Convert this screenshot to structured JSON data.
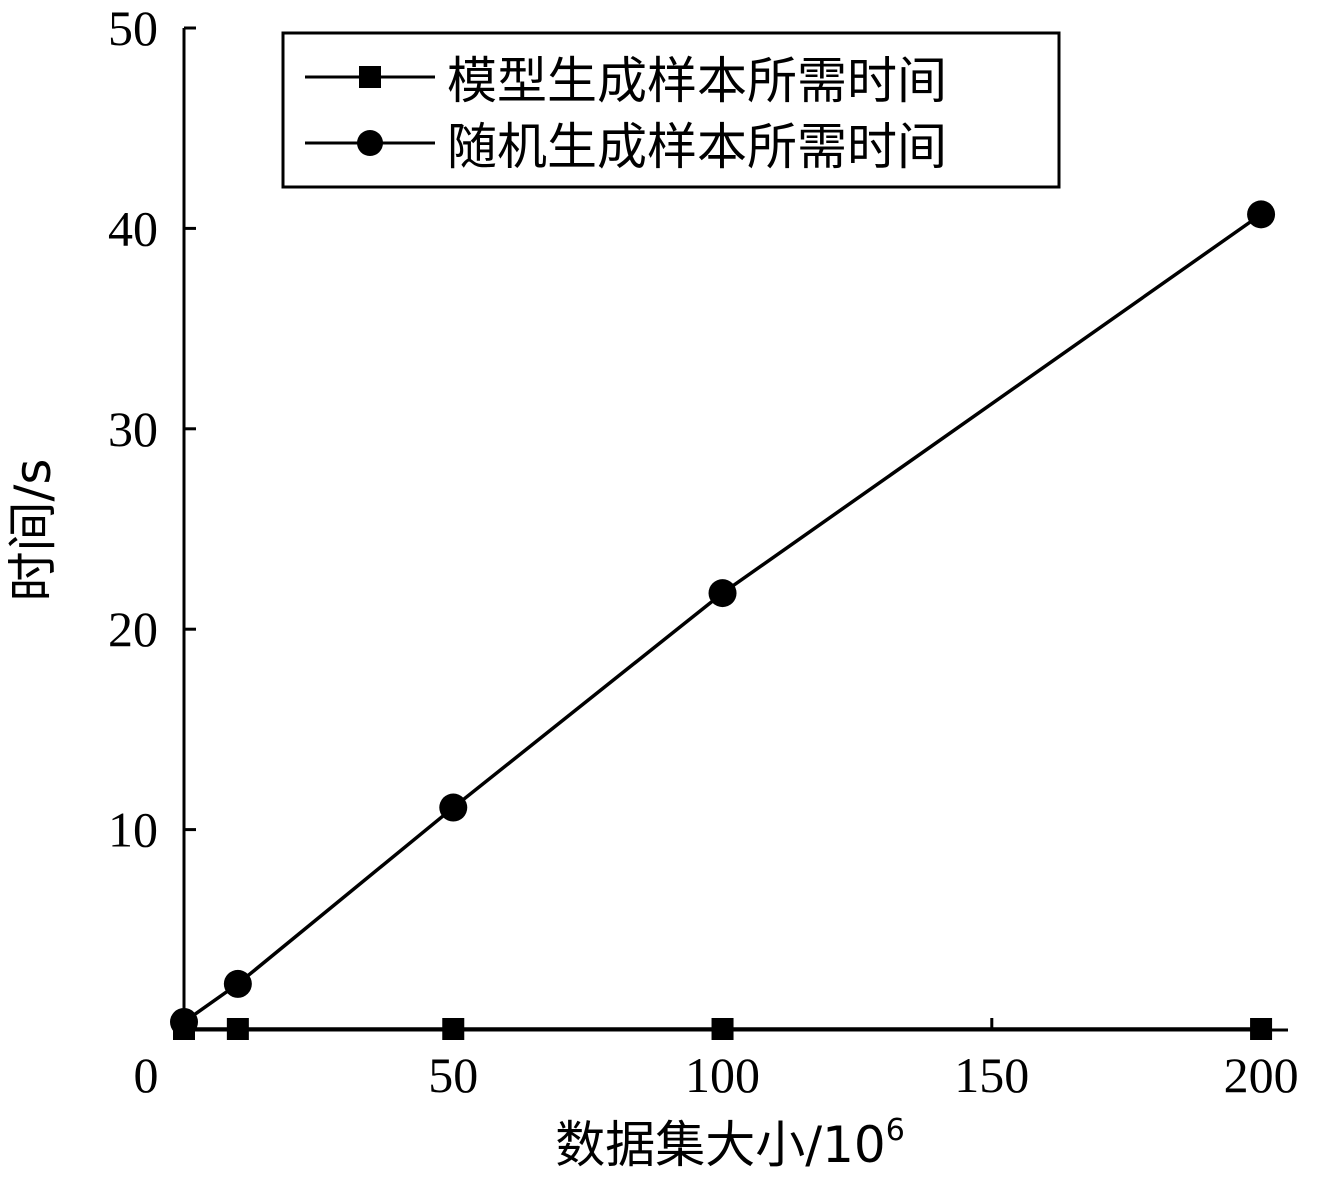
{
  "chart_data": {
    "type": "line",
    "title": "",
    "xlabel": "数据集大小/10",
    "xlabel_superscript": "6",
    "ylabel": "时间/s",
    "xlim": [
      0,
      205
    ],
    "ylim": [
      0,
      50
    ],
    "x_ticks": [
      0,
      50,
      100,
      150,
      200
    ],
    "x_tick_labels": [
      "0",
      "50",
      "100",
      "150",
      "200"
    ],
    "y_ticks": [
      10,
      20,
      30,
      40,
      50
    ],
    "y_tick_labels": [
      "10",
      "20",
      "30",
      "40",
      "50"
    ],
    "legend_position": "top",
    "grid": false,
    "series": [
      {
        "name": "模型生成样本所需时间",
        "marker": "square",
        "color": "#000000",
        "x": [
          0,
          10,
          50,
          100,
          200
        ],
        "y": [
          0.05,
          0.05,
          0.05,
          0.05,
          0.05
        ]
      },
      {
        "name": "随机生成样本所需时间",
        "marker": "circle",
        "color": "#000000",
        "x": [
          0,
          10,
          50,
          100,
          200
        ],
        "y": [
          0.4,
          2.3,
          11.1,
          21.8,
          40.7
        ]
      }
    ]
  }
}
